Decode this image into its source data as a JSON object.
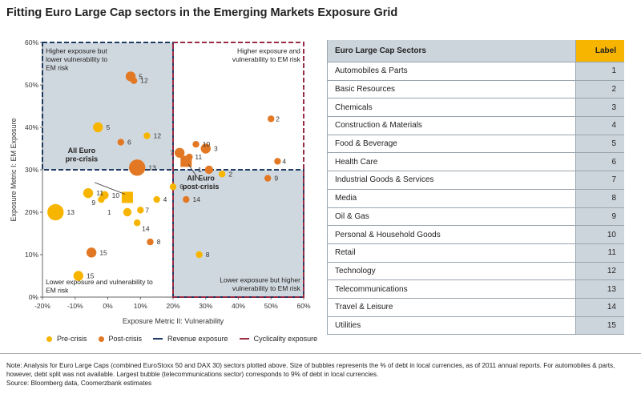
{
  "title": "Fitting Euro Large Cap sectors in the Emerging Markets Exposure Grid",
  "colors": {
    "pre": "#f7b500",
    "post": "#e27823",
    "revenue": "#1f3b63",
    "cyclicality": "#9a2b45",
    "shade": "#d0d8df",
    "header": "#cdd5dc",
    "label_header": "#f7b500"
  },
  "chart_data": {
    "type": "scatter",
    "title": "Fitting Euro Large Cap sectors in the Emerging Markets Exposure Grid",
    "xlabel": "Exposure Metric II: Vulnerability",
    "ylabel": "Exposure Metric I: EM Exposure",
    "xlim": [
      -20,
      60
    ],
    "ylim": [
      0,
      60
    ],
    "xticks": [
      -20,
      -10,
      0,
      10,
      20,
      30,
      40,
      50,
      60
    ],
    "yticks": [
      0,
      10,
      20,
      30,
      40,
      50,
      60
    ],
    "xtick_labels": [
      "-20%",
      "-10%",
      "0%",
      "10%",
      "20%",
      "30%",
      "40%",
      "50%",
      "60%"
    ],
    "ytick_labels": [
      "0%",
      "10%",
      "20%",
      "30%",
      "40%",
      "50%",
      "60%"
    ],
    "quadrant_labels": [
      {
        "text": "Higher exposure but lower vulnerability to EM risk",
        "position": "top-left"
      },
      {
        "text": "Higher exposure and vulnerability to EM risk",
        "position": "top-right"
      },
      {
        "text": "Lower exposure and vulnerability to EM risk",
        "position": "bottom-left"
      },
      {
        "text": "Lower exposure but higher vulnerability to EM risk",
        "position": "bottom-right"
      }
    ],
    "regions": [
      {
        "name": "Revenue exposure",
        "x": [
          -20,
          20
        ],
        "y": [
          30,
          60
        ],
        "style": "dashed",
        "color": "#1f3b63"
      },
      {
        "name": "Revenue exposure",
        "x": [
          20,
          60
        ],
        "y": [
          0,
          30
        ],
        "style": "dashed",
        "color": "#1f3b63"
      },
      {
        "name": "Cyclicality exposure",
        "x": [
          20,
          60
        ],
        "y": [
          0,
          60
        ],
        "style": "dashed",
        "color": "#9a2b45"
      }
    ],
    "series": [
      {
        "name": "Pre-crisis",
        "color": "#f7b500",
        "points": [
          {
            "label": "1",
            "x": 6,
            "y": 20,
            "size": 3
          },
          {
            "label": "2",
            "x": 35,
            "y": 29,
            "size": 2
          },
          {
            "label": "4",
            "x": 15,
            "y": 23,
            "size": 2
          },
          {
            "label": "5",
            "x": -3,
            "y": 40,
            "size": 4
          },
          {
            "label": "6",
            "x": 20,
            "y": 26,
            "size": 2
          },
          {
            "label": "7",
            "x": 10,
            "y": 20.5,
            "size": 2
          },
          {
            "label": "8",
            "x": 28,
            "y": 10,
            "size": 2
          },
          {
            "label": "9",
            "x": -2,
            "y": 23,
            "size": 2
          },
          {
            "label": "10",
            "x": -1,
            "y": 24,
            "size": 3
          },
          {
            "label": "11",
            "x": -6,
            "y": 24.5,
            "size": 4
          },
          {
            "label": "12",
            "x": 12,
            "y": 38,
            "size": 2
          },
          {
            "label": "13",
            "x": -16,
            "y": 20,
            "size": 8
          },
          {
            "label": "14",
            "x": 9,
            "y": 17.5,
            "size": 2
          },
          {
            "label": "15",
            "x": -9,
            "y": 5,
            "size": 4
          }
        ]
      },
      {
        "name": "Post-crisis",
        "color": "#e27823",
        "points": [
          {
            "label": "1",
            "x": 31,
            "y": 30,
            "size": 3
          },
          {
            "label": "2",
            "x": 50,
            "y": 42,
            "size": 2
          },
          {
            "label": "3",
            "x": 30,
            "y": 35,
            "size": 4
          },
          {
            "label": "4",
            "x": 52,
            "y": 32,
            "size": 2
          },
          {
            "label": "5",
            "x": 7,
            "y": 52,
            "size": 4
          },
          {
            "label": "6",
            "x": 4,
            "y": 36.5,
            "size": 2
          },
          {
            "label": "7",
            "x": 22,
            "y": 34,
            "size": 4
          },
          {
            "label": "8",
            "x": 13,
            "y": 13,
            "size": 2
          },
          {
            "label": "9",
            "x": 49,
            "y": 28,
            "size": 2
          },
          {
            "label": "10",
            "x": 27,
            "y": 36,
            "size": 2
          },
          {
            "label": "11",
            "x": 25,
            "y": 33,
            "size": 2
          },
          {
            "label": "12",
            "x": 8,
            "y": 51,
            "size": 2
          },
          {
            "label": "13",
            "x": 9,
            "y": 30.5,
            "size": 8
          },
          {
            "label": "14",
            "x": 24,
            "y": 23,
            "size": 2
          },
          {
            "label": "15",
            "x": -5,
            "y": 10.5,
            "size": 4
          }
        ]
      }
    ],
    "averages": [
      {
        "name": "All Euro pre-crisis",
        "label": "All Euro\npre-crisis",
        "x": 6,
        "y": 23.5,
        "color": "#f7b500"
      },
      {
        "name": "All Euro post-crisis",
        "label": "All Euro\npost-crisis",
        "x": 24,
        "y": 32,
        "color": "#e27823"
      }
    ]
  },
  "legend": {
    "pre_crisis": "Pre-crisis",
    "post_crisis": "Post-crisis",
    "revenue": "Revenue exposure",
    "cyclicality": "Cyclicality exposure"
  },
  "table": {
    "header_sector": "Euro Large Cap Sectors",
    "header_label": "Label",
    "rows": [
      {
        "sector": "Automobiles & Parts",
        "label": "1"
      },
      {
        "sector": "Basic Resources",
        "label": "2"
      },
      {
        "sector": "Chemicals",
        "label": "3"
      },
      {
        "sector": "Construction & Materials",
        "label": "4"
      },
      {
        "sector": "Food & Beverage",
        "label": "5"
      },
      {
        "sector": "Health Care",
        "label": "6"
      },
      {
        "sector": "Industrial Goods & Services",
        "label": "7"
      },
      {
        "sector": "Media",
        "label": "8"
      },
      {
        "sector": "Oil & Gas",
        "label": "9"
      },
      {
        "sector": "Personal & Household Goods",
        "label": "10"
      },
      {
        "sector": "Retail",
        "label": "11"
      },
      {
        "sector": "Technology",
        "label": "12"
      },
      {
        "sector": "Telecommunications",
        "label": "13"
      },
      {
        "sector": "Travel & Leisure",
        "label": "14"
      },
      {
        "sector": "Utilities",
        "label": "15"
      }
    ]
  },
  "footnote": {
    "note": "Note: Analysis for Euro Large Caps (combined EuroStoxx 50 and DAX 30) sectors plotted above. Size of bubbles represents the % of debt in local currencies, as of 2011 annual reports. For automobiles & parts, however, debt split was not available. Largest bubble (telecommunications sector) corresponds to 9% of debt in local currencies.",
    "source": "Source: Bloomberg data, Coomerzbank estimates"
  }
}
